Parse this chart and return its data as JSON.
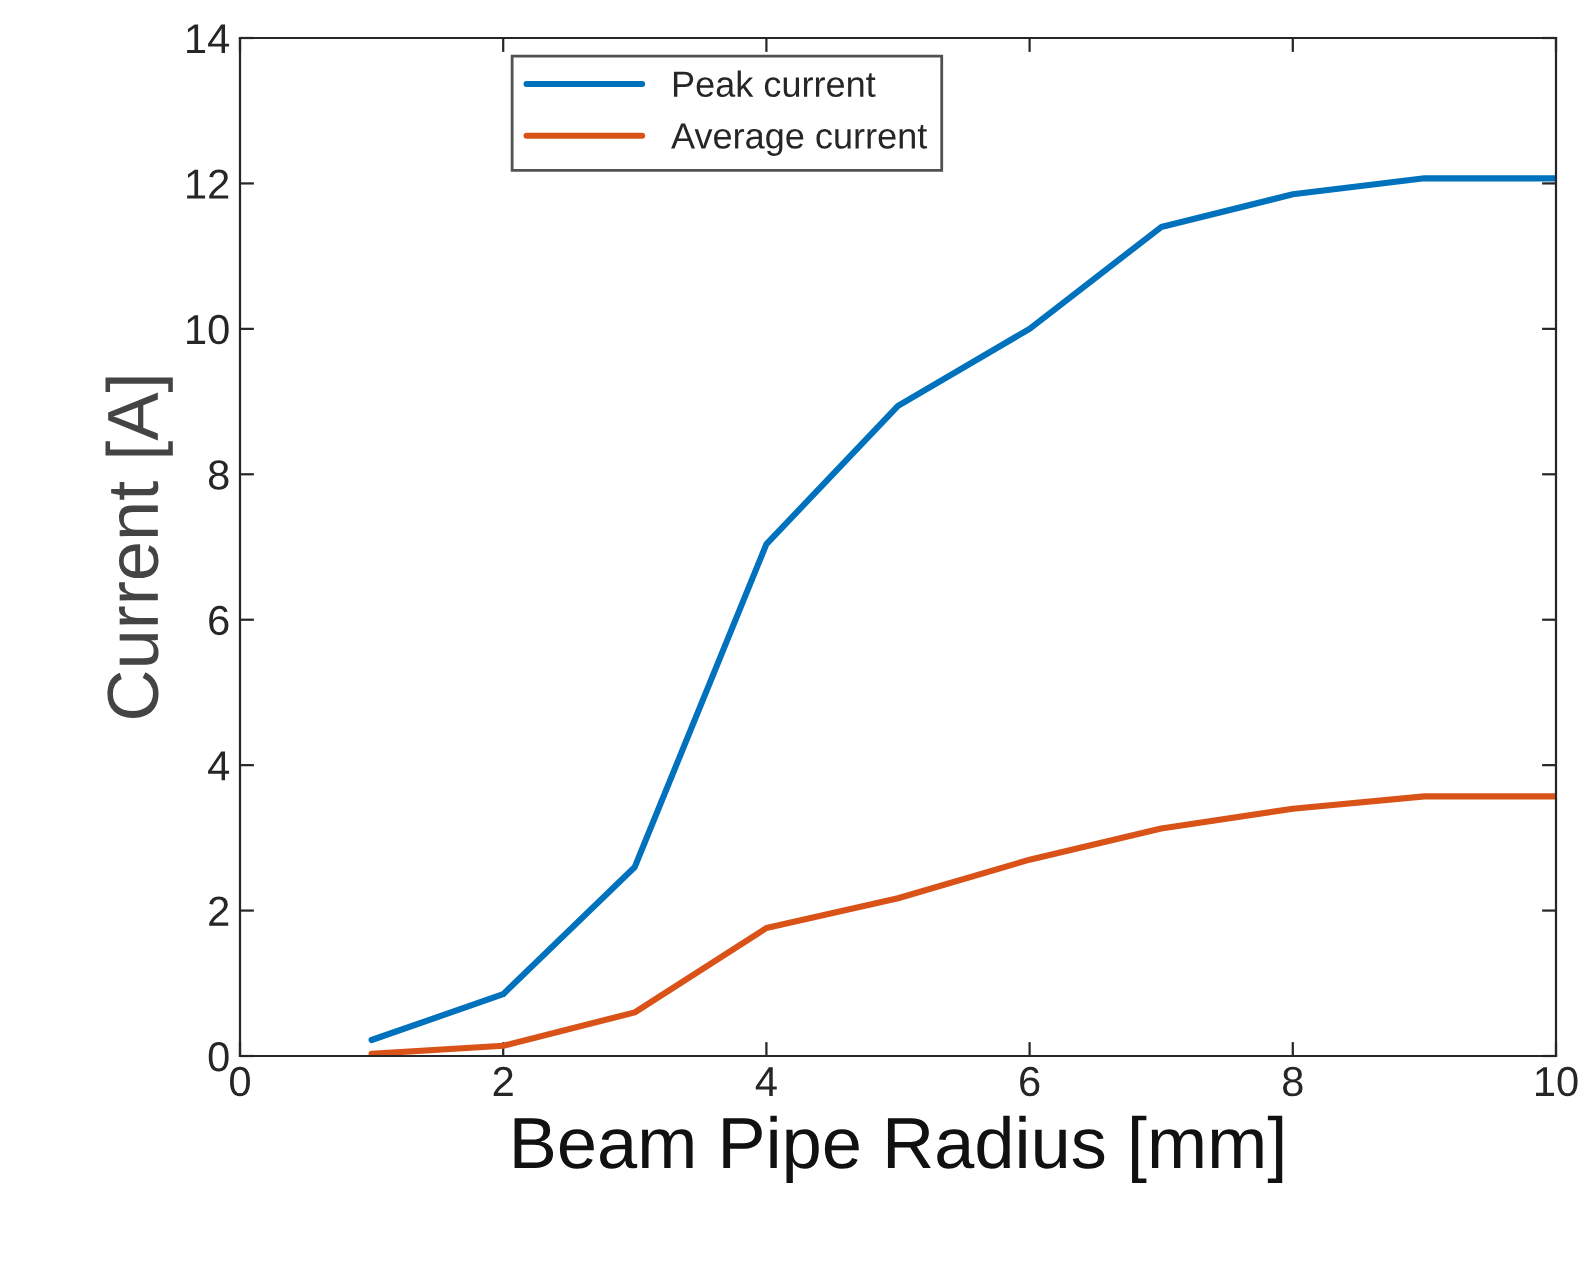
{
  "chart_data": {
    "type": "line",
    "xlabel": "Beam Pipe Radius [mm]",
    "ylabel": "Current [A]",
    "x": [
      1,
      2,
      3,
      4,
      5,
      6,
      7,
      8,
      9,
      10
    ],
    "series": [
      {
        "name": "Peak current",
        "color": "#0072bd",
        "values": [
          0.22,
          0.85,
          2.6,
          7.04,
          8.94,
          10.0,
          11.4,
          11.85,
          12.07,
          12.07
        ]
      },
      {
        "name": "Average current",
        "color": "#d95319",
        "values": [
          0.03,
          0.14,
          0.6,
          1.76,
          2.17,
          2.7,
          3.13,
          3.4,
          3.57,
          3.57
        ]
      }
    ],
    "xlim": [
      0,
      10
    ],
    "xticks": [
      0,
      2,
      4,
      6,
      8,
      10
    ],
    "ylim": [
      0,
      14
    ],
    "yticks": [
      0,
      2,
      4,
      6,
      8,
      10,
      12,
      14
    ],
    "grid": false,
    "legend": "top",
    "marker": "none",
    "line_style": "solid"
  }
}
